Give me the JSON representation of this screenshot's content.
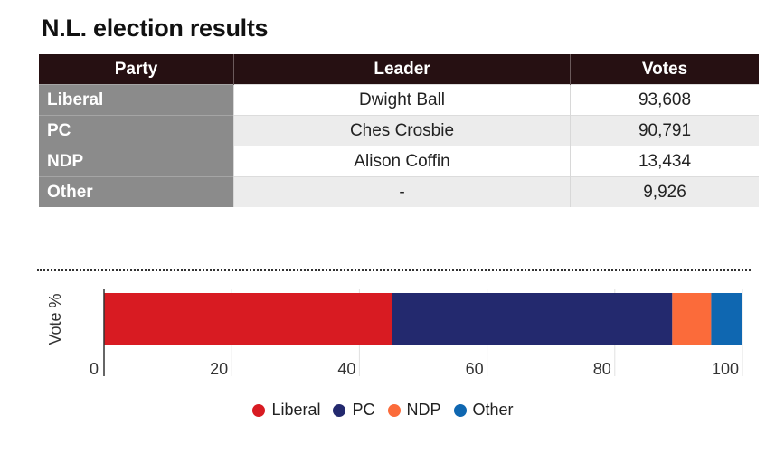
{
  "title": "N.L. election results",
  "table": {
    "headers": [
      "Party",
      "Leader",
      "Votes"
    ],
    "rows": [
      {
        "party": "Liberal",
        "leader": "Dwight Ball",
        "votes": "93,608"
      },
      {
        "party": "PC",
        "leader": "Ches Crosbie",
        "votes": "90,791"
      },
      {
        "party": "NDP",
        "leader": "Alison Coffin",
        "votes": "13,434"
      },
      {
        "party": "Other",
        "leader": "-",
        "votes": "9,926"
      }
    ]
  },
  "chart_data": {
    "type": "bar",
    "orientation": "horizontal",
    "stacked": true,
    "categories": [
      "Vote %"
    ],
    "ylabel": "Vote %",
    "xlim": [
      0,
      100
    ],
    "xticks": [
      0,
      20,
      40,
      60,
      80,
      100
    ],
    "grid": true,
    "legend_position": "bottom",
    "series": [
      {
        "name": "Liberal",
        "values": [
          45.1
        ],
        "color": "#d81b22"
      },
      {
        "name": "PC",
        "values": [
          43.9
        ],
        "color": "#23296e"
      },
      {
        "name": "NDP",
        "values": [
          6.1
        ],
        "color": "#fb6b3a"
      },
      {
        "name": "Other",
        "values": [
          4.9
        ],
        "color": "#0f67b1"
      }
    ]
  }
}
